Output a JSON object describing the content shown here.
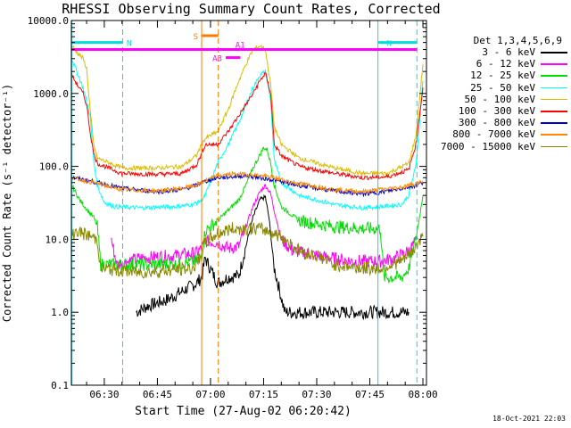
{
  "chart_data": {
    "type": "line",
    "title": "RHESSI Observing Summary Count Rates, Corrected",
    "xlabel": "Start Time (27-Aug-02 06:20:42)",
    "ylabel": "Corrected Count Rate (s⁻¹ detector⁻¹)",
    "yscale": "log",
    "ylim": [
      0.1,
      10000
    ],
    "xlim_minutes_after_0600": [
      20.7,
      121
    ],
    "y_ticks": [
      "0.1",
      "1.0",
      "10.0",
      "100.0",
      "1000.0",
      "10000.0"
    ],
    "x_ticks": [
      {
        "t": 30,
        "label": "06:30"
      },
      {
        "t": 45,
        "label": "06:45"
      },
      {
        "t": 60,
        "label": "07:00"
      },
      {
        "t": 75,
        "label": "07:15"
      },
      {
        "t": 90,
        "label": "07:30"
      },
      {
        "t": 105,
        "label": "07:45"
      },
      {
        "t": 120,
        "label": "08:00"
      }
    ],
    "legend_title": "Det 1,3,4,5,6,9",
    "legend_position": "right",
    "series": [
      {
        "name": "3 - 6 keV",
        "color": "#000000",
        "points": [
          [
            39,
            1.0
          ],
          [
            42,
            1.2
          ],
          [
            48,
            1.5
          ],
          [
            56,
            2.5
          ],
          [
            57.5,
            3.0
          ],
          [
            58.5,
            5.5
          ],
          [
            62,
            2.5
          ],
          [
            65,
            3.0
          ],
          [
            68,
            3.2
          ],
          [
            70,
            8
          ],
          [
            72,
            20
          ],
          [
            74,
            35
          ],
          [
            75.5,
            38
          ],
          [
            76.5,
            20
          ],
          [
            78,
            4
          ],
          [
            79.5,
            2
          ],
          [
            81,
            1.0
          ],
          [
            95,
            1.0
          ],
          [
            103,
            1.0
          ],
          [
            108,
            1.0
          ],
          [
            116,
            1.0
          ]
        ]
      },
      {
        "name": "6 - 12 keV",
        "color": "#ff00ff",
        "points": [
          [
            32,
            10
          ],
          [
            33.5,
            4.5
          ],
          [
            40,
            5.5
          ],
          [
            50,
            6.0
          ],
          [
            56,
            6.5
          ],
          [
            57.5,
            7.5
          ],
          [
            58.5,
            9.5
          ],
          [
            62,
            9
          ],
          [
            65,
            7.5
          ],
          [
            68,
            8
          ],
          [
            70,
            15
          ],
          [
            72,
            28
          ],
          [
            74,
            45
          ],
          [
            75.5,
            55
          ],
          [
            77,
            42
          ],
          [
            78,
            25
          ],
          [
            80,
            10
          ],
          [
            83,
            7
          ],
          [
            90,
            6
          ],
          [
            100,
            5
          ],
          [
            108,
            5
          ],
          [
            112,
            5.5
          ],
          [
            116,
            7
          ],
          [
            118.5,
            10
          ]
        ]
      },
      {
        "name": "12 - 25 keV",
        "color": "#00dd00",
        "points": [
          [
            20.8,
            55
          ],
          [
            23,
            35
          ],
          [
            25,
            26
          ],
          [
            27,
            20
          ],
          [
            28,
            15
          ],
          [
            29,
            4.5
          ],
          [
            40,
            4.5
          ],
          [
            50,
            4.5
          ],
          [
            56,
            5
          ],
          [
            57.5,
            6
          ],
          [
            58.5,
            13
          ],
          [
            62,
            18
          ],
          [
            65,
            25
          ],
          [
            68,
            35
          ],
          [
            70,
            55
          ],
          [
            72,
            95
          ],
          [
            74,
            145
          ],
          [
            75,
            180
          ],
          [
            76,
            170
          ],
          [
            77,
            110
          ],
          [
            78,
            55
          ],
          [
            80,
            28
          ],
          [
            85,
            18
          ],
          [
            95,
            15
          ],
          [
            103,
            14
          ],
          [
            108,
            14
          ],
          [
            109,
            3
          ],
          [
            114,
            3
          ],
          [
            116,
            4
          ],
          [
            118,
            10
          ],
          [
            120,
            40
          ]
        ]
      },
      {
        "name": "25 - 50 keV",
        "color": "#00ffff",
        "points": [
          [
            20.8,
            3000
          ],
          [
            24,
            1200
          ],
          [
            26,
            500
          ],
          [
            27,
            120
          ],
          [
            28,
            55
          ],
          [
            30,
            32
          ],
          [
            33,
            28
          ],
          [
            40,
            27
          ],
          [
            50,
            28
          ],
          [
            55,
            30
          ],
          [
            57.5,
            34
          ],
          [
            58.5,
            40
          ],
          [
            62,
            110
          ],
          [
            65,
            200
          ],
          [
            68,
            400
          ],
          [
            70,
            700
          ],
          [
            72,
            1200
          ],
          [
            74,
            1800
          ],
          [
            75.5,
            2000
          ],
          [
            77,
            800
          ],
          [
            78,
            120
          ],
          [
            80,
            60
          ],
          [
            85,
            40
          ],
          [
            95,
            30
          ],
          [
            103,
            27
          ],
          [
            108,
            28
          ],
          [
            114,
            30
          ],
          [
            116,
            40
          ],
          [
            118,
            100
          ],
          [
            120,
            1500
          ]
        ]
      },
      {
        "name": "50 - 100 keV",
        "color": "#ddbb00",
        "points": [
          [
            20.8,
            4500
          ],
          [
            22,
            3800
          ],
          [
            24,
            3000
          ],
          [
            25,
            2200
          ],
          [
            26,
            600
          ],
          [
            27,
            200
          ],
          [
            28,
            130
          ],
          [
            35,
            95
          ],
          [
            45,
            95
          ],
          [
            52,
            100
          ],
          [
            56,
            140
          ],
          [
            57.5,
            200
          ],
          [
            58.5,
            240
          ],
          [
            62,
            300
          ],
          [
            65,
            600
          ],
          [
            68,
            1500
          ],
          [
            70,
            2500
          ],
          [
            72,
            4000
          ],
          [
            74,
            4500
          ],
          [
            75.5,
            4000
          ],
          [
            77,
            1300
          ],
          [
            78,
            350
          ],
          [
            80,
            200
          ],
          [
            85,
            130
          ],
          [
            95,
            95
          ],
          [
            103,
            80
          ],
          [
            110,
            80
          ],
          [
            116,
            110
          ],
          [
            118,
            260
          ],
          [
            120,
            2500
          ]
        ]
      },
      {
        "name": "100 - 300 keV",
        "color": "#ff0000",
        "points": [
          [
            20.8,
            1800
          ],
          [
            22,
            1400
          ],
          [
            24,
            1000
          ],
          [
            25,
            700
          ],
          [
            26,
            300
          ],
          [
            27,
            150
          ],
          [
            28,
            110
          ],
          [
            35,
            80
          ],
          [
            45,
            78
          ],
          [
            52,
            80
          ],
          [
            56,
            105
          ],
          [
            57.5,
            150
          ],
          [
            58.5,
            200
          ],
          [
            62,
            200
          ],
          [
            65,
            300
          ],
          [
            68,
            500
          ],
          [
            70,
            700
          ],
          [
            72,
            1000
          ],
          [
            74,
            1500
          ],
          [
            75.5,
            1900
          ],
          [
            77,
            1000
          ],
          [
            78,
            200
          ],
          [
            80,
            140
          ],
          [
            85,
            100
          ],
          [
            95,
            80
          ],
          [
            103,
            70
          ],
          [
            110,
            72
          ],
          [
            116,
            90
          ],
          [
            118,
            200
          ],
          [
            120,
            1200
          ]
        ]
      },
      {
        "name": "300 - 800 keV",
        "color": "#0000cc",
        "points": [
          [
            20.8,
            70
          ],
          [
            24,
            66
          ],
          [
            28,
            60
          ],
          [
            35,
            50
          ],
          [
            45,
            45
          ],
          [
            52,
            48
          ],
          [
            56,
            55
          ],
          [
            57.5,
            60
          ],
          [
            62,
            70
          ],
          [
            66,
            72
          ],
          [
            70,
            75
          ],
          [
            74,
            70
          ],
          [
            78,
            65
          ],
          [
            82,
            58
          ],
          [
            88,
            52
          ],
          [
            95,
            46
          ],
          [
            103,
            42
          ],
          [
            108,
            44
          ],
          [
            114,
            50
          ],
          [
            118,
            55
          ],
          [
            120,
            60
          ]
        ]
      },
      {
        "name": "800 - 7000 keV",
        "color": "#ff8800",
        "points": [
          [
            20.8,
            70
          ],
          [
            24,
            65
          ],
          [
            28,
            58
          ],
          [
            35,
            48
          ],
          [
            45,
            46
          ],
          [
            52,
            50
          ],
          [
            56,
            55
          ],
          [
            57.5,
            60
          ],
          [
            62,
            75
          ],
          [
            66,
            78
          ],
          [
            70,
            78
          ],
          [
            74,
            75
          ],
          [
            78,
            70
          ],
          [
            82,
            62
          ],
          [
            88,
            55
          ],
          [
            95,
            48
          ],
          [
            103,
            45
          ],
          [
            108,
            48
          ],
          [
            114,
            52
          ],
          [
            118,
            58
          ],
          [
            120,
            62
          ]
        ]
      },
      {
        "name": "7000 - 15000 keV",
        "color": "#888800",
        "points": [
          [
            20.8,
            11
          ],
          [
            22,
            13
          ],
          [
            24,
            12
          ],
          [
            26,
            11
          ],
          [
            28,
            10
          ],
          [
            29,
            4
          ],
          [
            40,
            3.5
          ],
          [
            50,
            3.8
          ],
          [
            55,
            4
          ],
          [
            56.5,
            5
          ],
          [
            57.5,
            7
          ],
          [
            58.5,
            9
          ],
          [
            62,
            12
          ],
          [
            66,
            14
          ],
          [
            70,
            14
          ],
          [
            74,
            14
          ],
          [
            76,
            13
          ],
          [
            80,
            11
          ],
          [
            85,
            7
          ],
          [
            90,
            6
          ],
          [
            95,
            4.5
          ],
          [
            103,
            4
          ],
          [
            108,
            4
          ],
          [
            114,
            5
          ],
          [
            116,
            6
          ],
          [
            118,
            8
          ],
          [
            120,
            11
          ]
        ]
      }
    ],
    "annotations": [
      {
        "label": "N",
        "color": "#00dddd",
        "t_start": 20.7,
        "t_end": 35.2,
        "level": 5000
      },
      {
        "label": "N",
        "color": "#00dddd",
        "t_start": 107.3,
        "t_end": 118.3,
        "level": 5000
      },
      {
        "label": "S",
        "color": "#ff7700",
        "t_start": 57.5,
        "t_end": 62.2,
        "level": 6200
      },
      {
        "label": "A1",
        "color": "#ff00ff",
        "t_start": 20.7,
        "t_end": 118.3,
        "level": 4000
      },
      {
        "label": "A3",
        "color": "#ff00ff",
        "t_start": 64.3,
        "t_end": 68.4,
        "level": 3100
      }
    ],
    "vertical_markers": [
      {
        "t": 20.8,
        "color": "#00dddd",
        "style": "solid"
      },
      {
        "t": 35.2,
        "color": "#00dddd",
        "style": "dashed"
      },
      {
        "t": 57.5,
        "color": "#ff7700",
        "style": "solid"
      },
      {
        "t": 62.2,
        "color": "#ff7700",
        "style": "dashed"
      },
      {
        "t": 107.3,
        "color": "#00dddd",
        "style": "solid"
      },
      {
        "t": 118.3,
        "color": "#00dddd",
        "style": "dashed"
      }
    ]
  },
  "date_stamp": "18-Oct-2021 22:03"
}
